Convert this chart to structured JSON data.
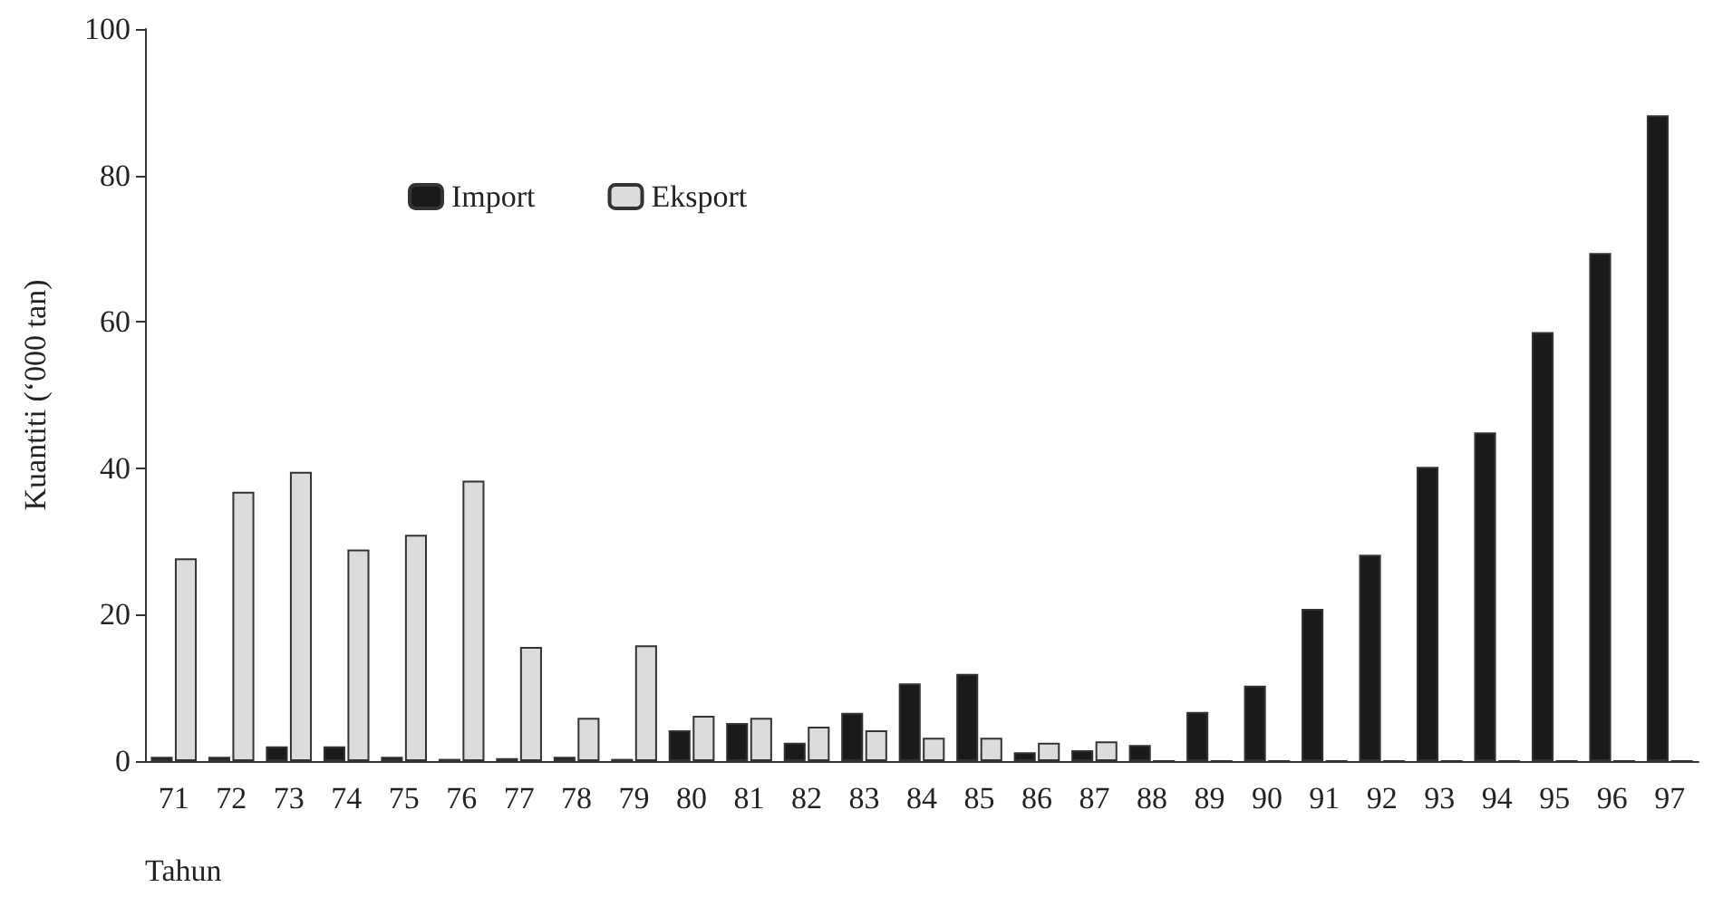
{
  "chart_data": {
    "type": "bar",
    "xlabel": "Tahun",
    "ylabel": "Kuantiti (‘000 tan)",
    "categories": [
      "71",
      "72",
      "73",
      "74",
      "75",
      "76",
      "77",
      "78",
      "79",
      "80",
      "81",
      "82",
      "83",
      "84",
      "85",
      "86",
      "87",
      "88",
      "89",
      "90",
      "91",
      "92",
      "93",
      "94",
      "95",
      "96",
      "97"
    ],
    "series": [
      {
        "name": "Import",
        "color": "#1a1a1a",
        "values": [
          0.6,
          0.6,
          2,
          2,
          0.6,
          0.3,
          0.4,
          0.6,
          0.3,
          4.2,
          5.2,
          2.5,
          6.6,
          10.6,
          11.9,
          1.2,
          1.5,
          2.2,
          6.7,
          10.3,
          20.8,
          28.2,
          40.2,
          44.9,
          58.6,
          69.4,
          88.2
        ]
      },
      {
        "name": "Eksport",
        "color": "#dcdcdc",
        "values": [
          27.7,
          36.8,
          39.5,
          28.9,
          30.9,
          38.3,
          15.6,
          5.9,
          15.8,
          6.2,
          5.9,
          4.7,
          4.2,
          3.2,
          3.2,
          2.5,
          2.7,
          0,
          0,
          0,
          0,
          0,
          0,
          0,
          0,
          0,
          0
        ]
      }
    ],
    "ylim": [
      0,
      100
    ],
    "yticks": [
      0,
      20,
      40,
      60,
      80,
      100
    ],
    "grid": false,
    "legend": "top left"
  }
}
